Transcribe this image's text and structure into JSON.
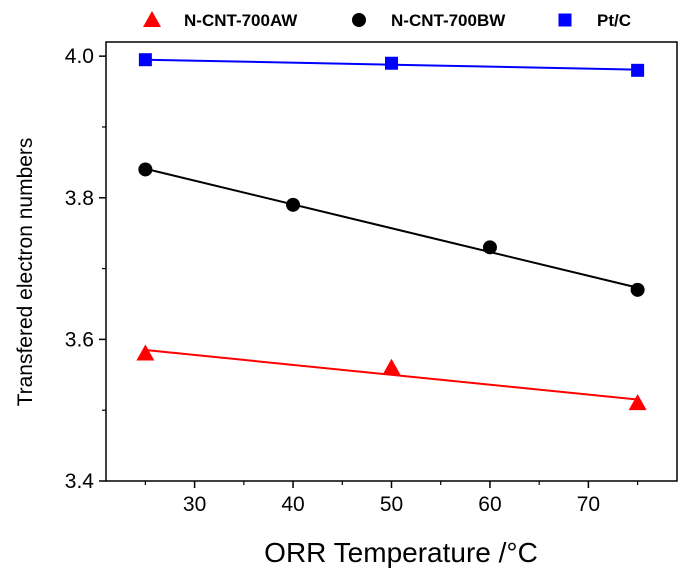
{
  "chart_data": {
    "type": "scatter",
    "xlabel": "ORR Temperature /°C",
    "ylabel": "Transfered electron numbers",
    "xlim": [
      21,
      79
    ],
    "ylim": [
      3.4,
      4.02
    ],
    "x_ticks": [
      30,
      40,
      50,
      60,
      70
    ],
    "x_tick_labels": [
      "30",
      "40",
      "50",
      "60",
      "70"
    ],
    "y_ticks": [
      3.4,
      3.6,
      3.8,
      4.0
    ],
    "y_tick_labels": [
      "3.4",
      "3.6",
      "3.8",
      "4.0"
    ],
    "legend_position": "top",
    "series": [
      {
        "name": "N-CNT-700AW",
        "marker": "triangle",
        "color": "#ff0000",
        "x": [
          25,
          50,
          75
        ],
        "y": [
          3.58,
          3.56,
          3.51
        ],
        "fit": {
          "x": [
            25,
            75
          ],
          "y": [
            3.585,
            3.515
          ]
        }
      },
      {
        "name": "N-CNT-700BW",
        "marker": "circle",
        "color": "#000000",
        "x": [
          25,
          40,
          60,
          75
        ],
        "y": [
          3.84,
          3.79,
          3.73,
          3.67
        ],
        "fit": {
          "x": [
            25,
            75
          ],
          "y": [
            3.841,
            3.673
          ]
        }
      },
      {
        "name": "Pt/C",
        "marker": "square",
        "color": "#0000ff",
        "x": [
          25,
          50,
          75
        ],
        "y": [
          3.995,
          3.99,
          3.98
        ],
        "fit": {
          "x": [
            25,
            75
          ],
          "y": [
            3.995,
            3.981
          ]
        }
      }
    ]
  }
}
